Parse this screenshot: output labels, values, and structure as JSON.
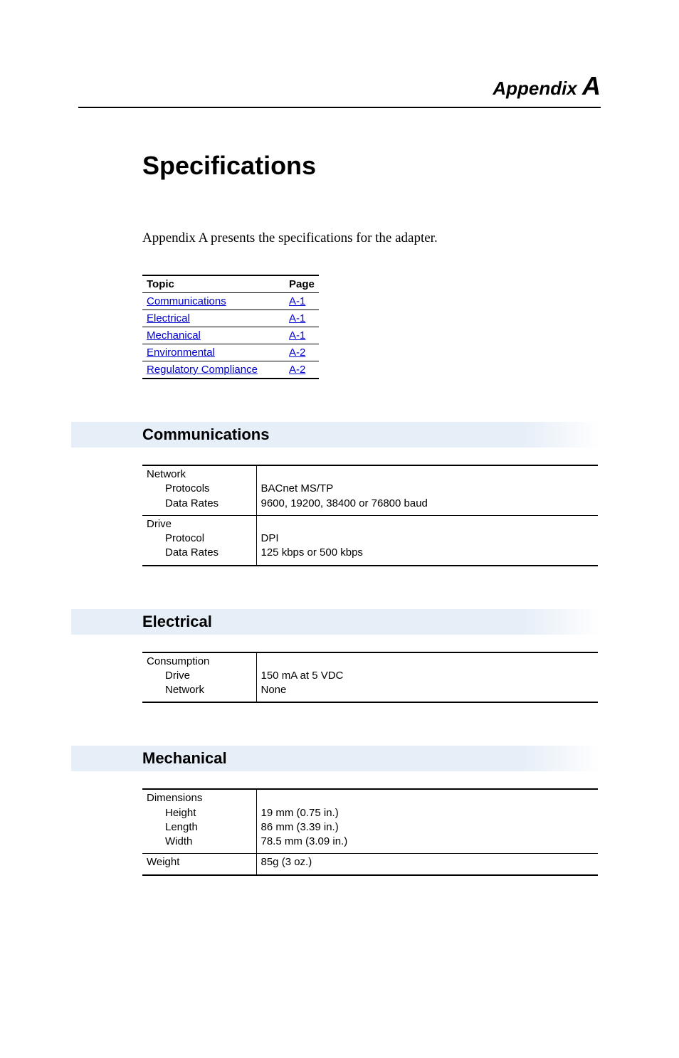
{
  "appendix": {
    "label": "Appendix",
    "letter": "A"
  },
  "title": "Specifications",
  "intro": "Appendix A presents the specifications for the adapter.",
  "toc": {
    "headers": {
      "topic": "Topic",
      "page": "Page"
    },
    "rows": [
      {
        "topic": "Communications",
        "page": "A-1"
      },
      {
        "topic": "Electrical",
        "page": "A-1"
      },
      {
        "topic": "Mechanical",
        "page": "A-1"
      },
      {
        "topic": "Environmental",
        "page": "A-2"
      },
      {
        "topic": "Regulatory Compliance",
        "page": "A-2"
      }
    ]
  },
  "sections": {
    "communications": {
      "heading": "Communications",
      "network": {
        "label": "Network",
        "protocols_label": "Protocols",
        "protocols_value": "BACnet MS/TP",
        "datarates_label": "Data Rates",
        "datarates_value": "9600, 19200, 38400 or 76800 baud"
      },
      "drive": {
        "label": "Drive",
        "protocol_label": "Protocol",
        "protocol_value": "DPI",
        "datarates_label": "Data Rates",
        "datarates_value": "125 kbps or 500 kbps"
      }
    },
    "electrical": {
      "heading": "Electrical",
      "consumption": {
        "label": "Consumption",
        "drive_label": "Drive",
        "drive_value": "150 mA at 5 VDC",
        "network_label": "Network",
        "network_value": "None"
      }
    },
    "mechanical": {
      "heading": "Mechanical",
      "dimensions": {
        "label": "Dimensions",
        "height_label": "Height",
        "height_value": "19 mm (0.75 in.)",
        "length_label": "Length",
        "length_value": "86 mm (3.39 in.)",
        "width_label": "Width",
        "width_value": "78.5 mm (3.09 in.)"
      },
      "weight": {
        "label": "Weight",
        "value": "85g (3 oz.)"
      }
    }
  },
  "colors": {
    "section_bg": "#e6eef7",
    "link": "#0000cc",
    "text": "#000000",
    "background": "#ffffff"
  }
}
